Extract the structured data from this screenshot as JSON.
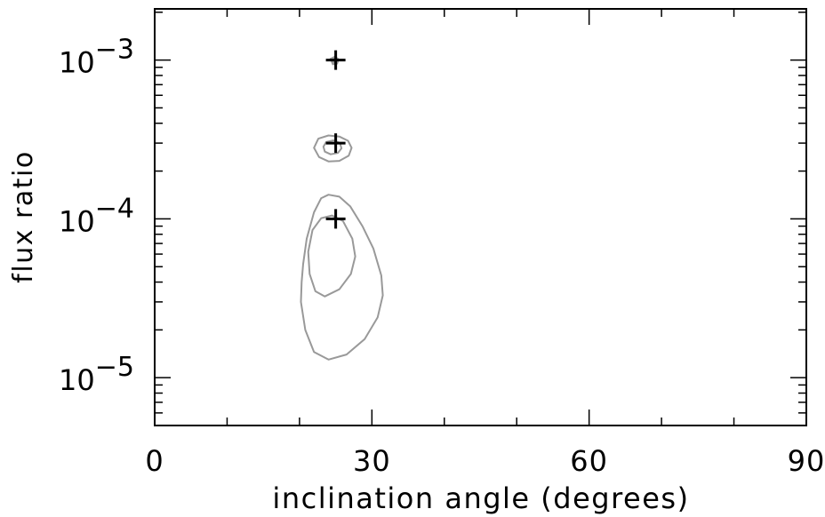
{
  "chart_data": {
    "type": "scatter",
    "xlabel": "inclination angle (degrees)",
    "ylabel": "flux ratio",
    "xlim": [
      0,
      90
    ],
    "ylim": [
      5e-06,
      0.0021
    ],
    "yscale": "log",
    "x_ticks": [
      {
        "value": 0,
        "label": "0"
      },
      {
        "value": 30,
        "label": "30"
      },
      {
        "value": 60,
        "label": "60"
      },
      {
        "value": 90,
        "label": "90"
      }
    ],
    "y_ticks": [
      {
        "value": 1e-05,
        "base": "10",
        "exp": "−5"
      },
      {
        "value": 0.0001,
        "base": "10",
        "exp": "−4"
      },
      {
        "value": 0.001,
        "base": "10",
        "exp": "−3"
      }
    ],
    "markers": [
      {
        "x": 25,
        "y": 0.001
      },
      {
        "x": 25,
        "y": 0.0003
      },
      {
        "x": 25,
        "y": 0.0001
      }
    ],
    "contours": [
      {
        "level": "outer",
        "group": "low",
        "points": [
          [
            20.5,
            5.2e-05
          ],
          [
            21,
            7.5e-05
          ],
          [
            22,
            0.00011
          ],
          [
            23,
            0.000135
          ],
          [
            24,
            0.000142
          ],
          [
            25.5,
            0.000138
          ],
          [
            27,
            0.00012
          ],
          [
            28.7,
            9e-05
          ],
          [
            30.2,
            6.5e-05
          ],
          [
            31.3,
            4.4e-05
          ],
          [
            31.5,
            3.3e-05
          ],
          [
            30.8,
            2.4e-05
          ],
          [
            29,
            1.75e-05
          ],
          [
            26.5,
            1.4e-05
          ],
          [
            24,
            1.3e-05
          ],
          [
            22,
            1.45e-05
          ],
          [
            20.8,
            2e-05
          ],
          [
            20.2,
            3e-05
          ],
          [
            20.3,
            4e-05
          ]
        ]
      },
      {
        "level": "inner",
        "group": "low",
        "points": [
          [
            21.2,
            6.2e-05
          ],
          [
            21.8,
            8.5e-05
          ],
          [
            23,
            0.000101
          ],
          [
            24.5,
            0.000105
          ],
          [
            26,
            9.7e-05
          ],
          [
            27.3,
            7.5e-05
          ],
          [
            27.7,
            5.8e-05
          ],
          [
            27.1,
            4.5e-05
          ],
          [
            25.5,
            3.6e-05
          ],
          [
            23.5,
            3.25e-05
          ],
          [
            22.2,
            3.5e-05
          ],
          [
            21.4,
            4.5e-05
          ]
        ]
      },
      {
        "level": "outer",
        "group": "mid",
        "points": [
          [
            22,
            0.00028
          ],
          [
            22.6,
            0.00032
          ],
          [
            24,
            0.000335
          ],
          [
            25.5,
            0.00033
          ],
          [
            26.7,
            0.00031
          ],
          [
            27.2,
            0.00028
          ],
          [
            26.8,
            0.00025
          ],
          [
            25.5,
            0.000232
          ],
          [
            24,
            0.00023
          ],
          [
            22.7,
            0.000245
          ]
        ]
      },
      {
        "level": "inner",
        "group": "mid",
        "points": [
          [
            23.3,
            0.000285
          ],
          [
            23.7,
            0.000305
          ],
          [
            24.7,
            0.000312
          ],
          [
            25.6,
            0.0003
          ],
          [
            25.8,
            0.000278
          ],
          [
            25.3,
            0.00026
          ],
          [
            24.3,
            0.000255
          ],
          [
            23.5,
            0.000265
          ]
        ]
      },
      {
        "level": "outer",
        "group": "top",
        "points": [
          [
            24.3,
            0.00102
          ],
          [
            24.9,
            0.00105
          ],
          [
            25.4,
            0.00101
          ],
          [
            25.2,
            0.00095
          ],
          [
            24.6,
            0.00094
          ]
        ]
      }
    ]
  }
}
